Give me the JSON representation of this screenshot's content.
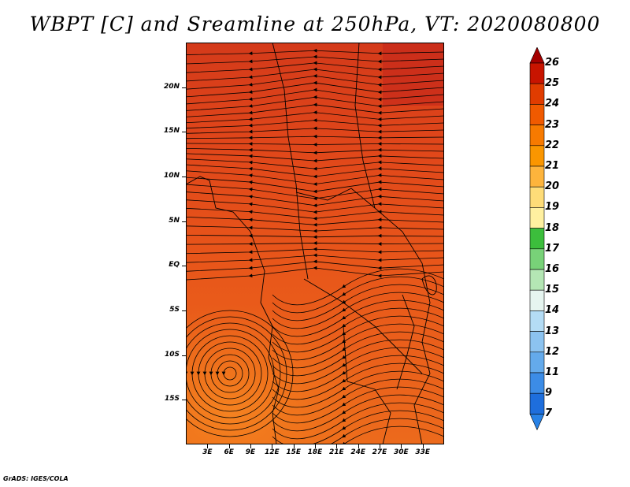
{
  "title": "WBPT [C] and Sreamline at 250hPa, VT: 2020080800",
  "footer": "GrADS: IGES/COLA",
  "map": {
    "lon_range": [
      0,
      36
    ],
    "lat_range": [
      -20,
      25
    ],
    "lat_ticks": [
      {
        "value": 20,
        "label": "20N"
      },
      {
        "value": 15,
        "label": "15N"
      },
      {
        "value": 10,
        "label": "10N"
      },
      {
        "value": 5,
        "label": "5N"
      },
      {
        "value": 0,
        "label": "EQ"
      },
      {
        "value": -5,
        "label": "5S"
      },
      {
        "value": -10,
        "label": "10S"
      },
      {
        "value": -15,
        "label": "15S"
      }
    ],
    "lon_ticks": [
      {
        "value": 3,
        "label": "3E"
      },
      {
        "value": 6,
        "label": "6E"
      },
      {
        "value": 9,
        "label": "9E"
      },
      {
        "value": 12,
        "label": "12E"
      },
      {
        "value": 15,
        "label": "15E"
      },
      {
        "value": 18,
        "label": "18E"
      },
      {
        "value": 21,
        "label": "21E"
      },
      {
        "value": 24,
        "label": "24E"
      },
      {
        "value": 27,
        "label": "27E"
      },
      {
        "value": 30,
        "label": "30E"
      },
      {
        "value": 33,
        "label": "33E"
      }
    ]
  },
  "colorbar": {
    "labels": [
      "26",
      "25",
      "24",
      "23",
      "22",
      "21",
      "20",
      "19",
      "18",
      "17",
      "16",
      "15",
      "14",
      "13",
      "12",
      "11",
      "9",
      "7"
    ],
    "colors": [
      "#a50000",
      "#c81400",
      "#e03c00",
      "#f05a00",
      "#f77a00",
      "#fa9600",
      "#fdb43c",
      "#fedc78",
      "#fff0a0",
      "#3cbe3c",
      "#78d278",
      "#b4e6b4",
      "#e6f5f0",
      "#b4dcf5",
      "#8cc3f0",
      "#64aaeb",
      "#3c8ce6",
      "#1e6edc",
      "#2882e6"
    ]
  }
}
